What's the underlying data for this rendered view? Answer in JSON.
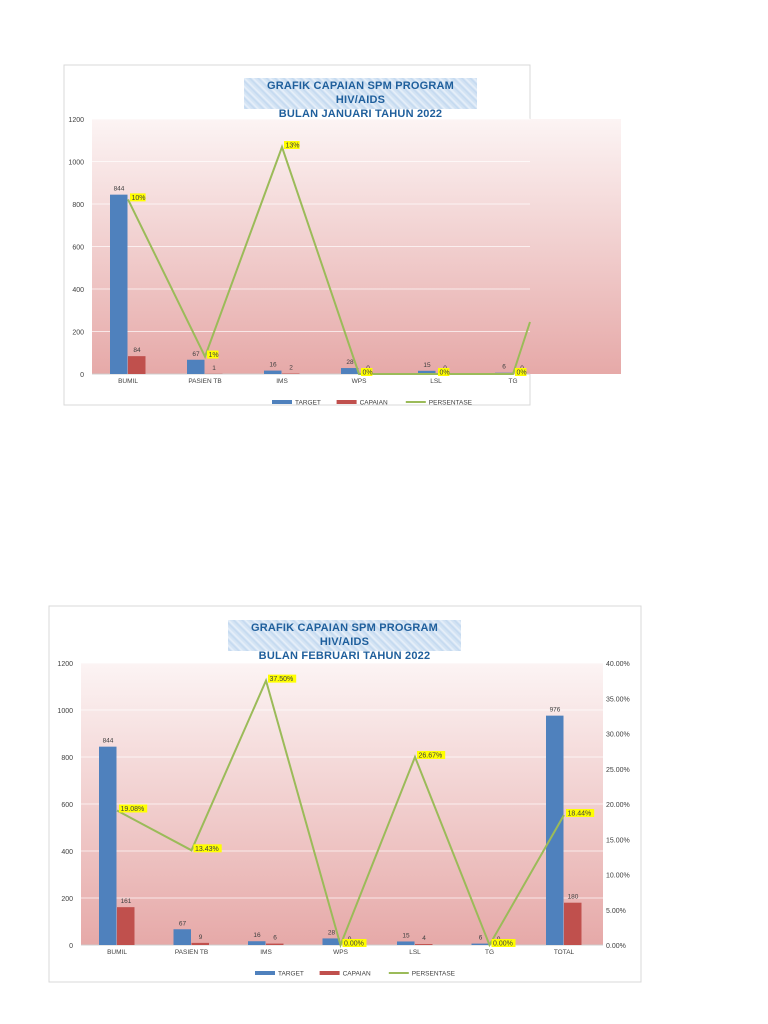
{
  "charts": [
    {
      "title_line1": "GRAFIK CAPAIAN SPM PROGRAM HIV/AIDS",
      "title_line2": "BULAN JANUARI TAHUN 2022",
      "chart_data": {
        "type": "bar",
        "title": "GRAFIK CAPAIAN SPM PROGRAM HIV/AIDS BULAN JANUARI TAHUN 2022",
        "categories": [
          "BUMIL",
          "PASIEN TB",
          "IMS",
          "WPS",
          "LSL",
          "TG"
        ],
        "series": [
          {
            "name": "TARGET",
            "type": "bar",
            "color": "#4f81bd",
            "values": [
              844,
              67,
              16,
              28,
              15,
              6
            ]
          },
          {
            "name": "CAPAIAN",
            "type": "bar",
            "color": "#c0504d",
            "values": [
              84,
              1,
              2,
              0,
              0,
              0
            ]
          },
          {
            "name": "PERSENTASE",
            "type": "line",
            "color": "#9bbb59",
            "values": [
              10,
              1,
              13,
              0,
              0,
              0
            ],
            "labels": [
              "10%",
              "1%",
              "13%",
              "0%",
              "0%",
              "0%"
            ]
          }
        ],
        "y_ticks": [
          "0",
          "200",
          "400",
          "600",
          "800",
          "1000",
          "1200"
        ],
        "ylim": [
          0,
          1200
        ],
        "legend": "bottom",
        "grid": true
      }
    },
    {
      "title_line1": "GRAFIK CAPAIAN SPM PROGRAM HIV/AIDS",
      "title_line2": "BULAN FEBRUARI TAHUN 2022",
      "chart_data": {
        "type": "bar",
        "title": "GRAFIK CAPAIAN SPM PROGRAM HIV/AIDS BULAN FEBRUARI TAHUN 2022",
        "categories": [
          "BUMIL",
          "PASIEN TB",
          "IMS",
          "WPS",
          "LSL",
          "TG",
          "TOTAL"
        ],
        "series": [
          {
            "name": "TARGET",
            "type": "bar",
            "color": "#4f81bd",
            "values": [
              844,
              67,
              16,
              28,
              15,
              6,
              976
            ]
          },
          {
            "name": "CAPAIAN",
            "type": "bar",
            "color": "#c0504d",
            "values": [
              161,
              9,
              6,
              0,
              4,
              0,
              180
            ]
          },
          {
            "name": "PERSENTASE",
            "type": "line",
            "color": "#9bbb59",
            "values": [
              19.08,
              13.43,
              37.5,
              0,
              26.67,
              0,
              18.44
            ],
            "labels": [
              "19.08%",
              "13.43%",
              "37.50%",
              "0.00%",
              "26.67%",
              "0.00%",
              "18.44%"
            ]
          }
        ],
        "y_ticks": [
          "0",
          "200",
          "400",
          "600",
          "800",
          "1000",
          "1200"
        ],
        "y2_ticks": [
          "0.00%",
          "5.00%",
          "10.00%",
          "15.00%",
          "20.00%",
          "25.00%",
          "30.00%",
          "35.00%",
          "40.00%"
        ],
        "ylim": [
          0,
          1200
        ],
        "y2lim": [
          0,
          40
        ],
        "legend": "bottom",
        "grid": true
      }
    }
  ]
}
